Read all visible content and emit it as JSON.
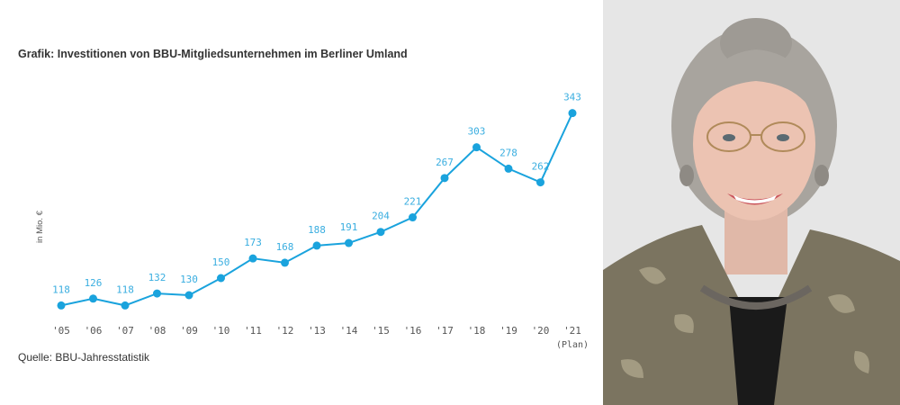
{
  "chart_data": {
    "type": "line",
    "title": "Grafik: Investitionen von BBU-Mitgliedsunternehmen im Berliner Umland",
    "ylabel": "in Mio. €",
    "xlabel": "",
    "categories": [
      "'05",
      "'06",
      "'07",
      "'08",
      "'09",
      "'10",
      "'11",
      "'12",
      "'13",
      "'14",
      "'15",
      "'16",
      "'17",
      "'18",
      "'19",
      "'20",
      "'21"
    ],
    "category_note": "(Plan)",
    "values": [
      118,
      126,
      118,
      132,
      130,
      150,
      173,
      168,
      188,
      191,
      204,
      221,
      267,
      303,
      278,
      262,
      343
    ],
    "ylim": [
      70,
      370
    ],
    "grid": false,
    "legend": "none",
    "line_color": "#1aa3dd",
    "label_color": "#3aaee0",
    "source": "Quelle: BBU-Jahresstatistik"
  },
  "photo": {
    "subject": "portrait-photo",
    "background_color": "#e6e6e6",
    "jacket_color": "#7b7460"
  }
}
